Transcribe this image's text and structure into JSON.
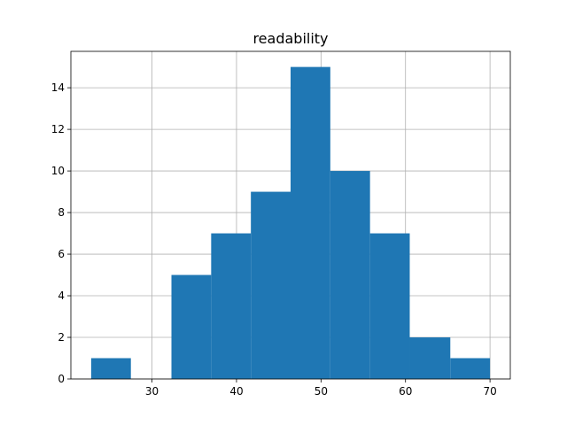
{
  "chart_data": {
    "type": "bar",
    "title": "readability",
    "xlabel": "",
    "ylabel": "",
    "bins": [
      [
        22.8,
        27.5
      ],
      [
        27.5,
        32.3
      ],
      [
        32.3,
        37.0
      ],
      [
        37.0,
        41.7
      ],
      [
        41.7,
        46.4
      ],
      [
        46.4,
        51.1
      ],
      [
        51.1,
        55.8
      ],
      [
        55.8,
        60.5
      ],
      [
        60.5,
        65.3
      ],
      [
        65.3,
        70.0
      ]
    ],
    "values": [
      1,
      0,
      5,
      7,
      9,
      15,
      10,
      7,
      2,
      1
    ],
    "xlim": [
      20.4,
      72.4
    ],
    "ylim": [
      0,
      15.75
    ],
    "xticks": [
      30,
      40,
      50,
      60,
      70
    ],
    "yticks": [
      0,
      2,
      4,
      6,
      8,
      10,
      12,
      14
    ],
    "grid": true,
    "bar_color": "#1f77b4",
    "grid_color": "#b0b0b0"
  }
}
